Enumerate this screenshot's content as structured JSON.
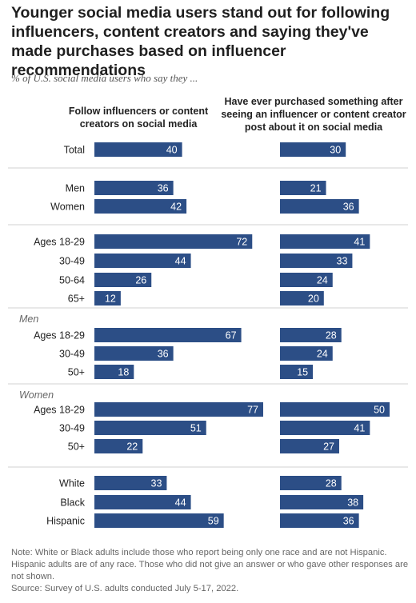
{
  "title": "Younger social media users stand out for following influencers, content creators and saying they've made purchases based on influencer recommendations",
  "subtitle": "% of U.S. social media users who say they ...",
  "note": "Note: White or Black adults include those who report being only one race and are not Hispanic. Hispanic adults are of any race. Those who did not give an answer or who gave other responses are not shown.",
  "source": "Source: Survey of U.S. adults conducted July 5-17, 2022.",
  "colors": {
    "bar": "#2c4e86",
    "divider": "#d0d0d0",
    "group_label": "#666666"
  },
  "chart_data": {
    "type": "bar",
    "orientation": "horizontal",
    "series": [
      {
        "name": "Follow influencers or content creators on social media",
        "values": [
          40,
          36,
          42,
          72,
          44,
          26,
          12,
          67,
          36,
          18,
          77,
          51,
          22,
          33,
          44,
          59
        ]
      },
      {
        "name": "Have ever purchased something after seeing an influencer or content creator post about it on social media",
        "values": [
          30,
          21,
          36,
          41,
          33,
          24,
          20,
          28,
          24,
          15,
          50,
          41,
          27,
          28,
          38,
          36
        ]
      }
    ],
    "groups": [
      {
        "label": "",
        "categories": [
          "Total"
        ]
      },
      {
        "label": "",
        "categories": [
          "Men",
          "Women"
        ]
      },
      {
        "label": "",
        "categories": [
          "Ages 18-29",
          "30-49",
          "50-64",
          "65+"
        ]
      },
      {
        "label": "Men",
        "categories": [
          "Ages 18-29",
          "30-49",
          "50+"
        ]
      },
      {
        "label": "Women",
        "categories": [
          "Ages 18-29",
          "30-49",
          "50+"
        ]
      },
      {
        "label": "",
        "categories": [
          "White",
          "Black",
          "Hispanic"
        ]
      }
    ]
  }
}
